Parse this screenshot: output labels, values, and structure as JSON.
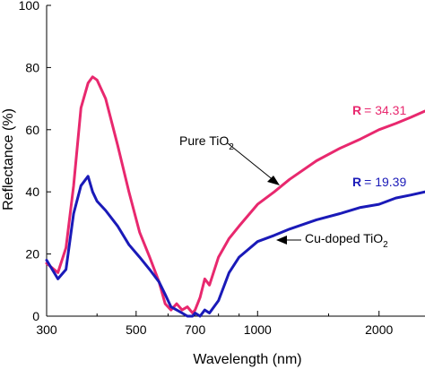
{
  "chart_data": {
    "type": "line",
    "title": "",
    "xlabel": "Wavelength (nm)",
    "ylabel": "Reflectance (%)",
    "xscale": "log",
    "xlim": [
      300,
      2600
    ],
    "ylim": [
      0,
      100
    ],
    "x_ticks": [
      300,
      500,
      700,
      1000,
      2000
    ],
    "y_ticks": [
      0,
      20,
      40,
      60,
      80,
      100
    ],
    "grid": false,
    "series": [
      {
        "name": "Pure TiO2",
        "color": "#e8286e",
        "x": [
          300,
          320,
          335,
          350,
          365,
          380,
          390,
          400,
          420,
          450,
          480,
          510,
          540,
          570,
          590,
          610,
          630,
          650,
          670,
          690,
          700,
          720,
          740,
          760,
          800,
          850,
          900,
          1000,
          1100,
          1200,
          1400,
          1600,
          1800,
          2000,
          2200,
          2400,
          2600
        ],
        "y": [
          17,
          14,
          22,
          42,
          67,
          75,
          77,
          76,
          70,
          55,
          40,
          27,
          19,
          11,
          4,
          2,
          4,
          2,
          3,
          1,
          2,
          6,
          12,
          10,
          19,
          25,
          29,
          36,
          40,
          44,
          50,
          54,
          57,
          60,
          62,
          64,
          66
        ]
      },
      {
        "name": "Cu-doped TiO2",
        "color": "#1a1ab8",
        "x": [
          300,
          320,
          335,
          350,
          365,
          380,
          390,
          400,
          420,
          450,
          480,
          510,
          540,
          570,
          590,
          610,
          630,
          650,
          670,
          690,
          700,
          720,
          740,
          760,
          800,
          850,
          900,
          1000,
          1100,
          1200,
          1400,
          1600,
          1800,
          2000,
          2200,
          2400,
          2600
        ],
        "y": [
          18,
          12,
          15,
          33,
          42,
          45,
          40,
          37,
          34,
          29,
          23,
          19,
          15,
          11,
          7,
          3,
          2,
          1,
          0,
          0,
          1,
          0,
          2,
          1,
          5,
          14,
          19,
          24,
          26,
          28,
          31,
          33,
          35,
          36,
          38,
          39,
          40
        ]
      }
    ],
    "annotations": [
      {
        "text": "Pure TiO",
        "sub": "2",
        "color": "#e8286e"
      },
      {
        "text": "Cu-doped TiO",
        "sub": "2",
        "color": "#1a1ab8"
      },
      {
        "label": "R",
        "value": "= 34.31",
        "color": "#e8286e"
      },
      {
        "label": "R",
        "value": "= 19.39",
        "color": "#1a1ab8"
      }
    ]
  }
}
